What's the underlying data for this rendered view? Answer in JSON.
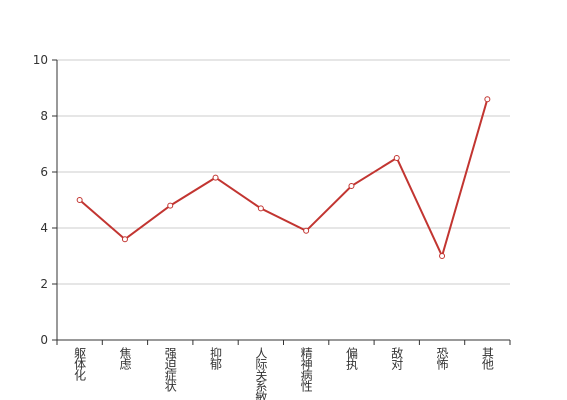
{
  "chart_data": {
    "type": "line",
    "categories": [
      "躯体化",
      "焦虑",
      "强迫症状",
      "抑郁",
      "人际关系敏感",
      "精神病性",
      "偏执",
      "敌对",
      "恐怖",
      "其他"
    ],
    "values": [
      5.0,
      3.6,
      4.8,
      5.8,
      4.7,
      3.9,
      5.5,
      6.5,
      3.0,
      8.6
    ],
    "color": "#c23531",
    "ylim": [
      0,
      10
    ],
    "yticks": [
      0,
      2,
      4,
      6,
      8,
      10
    ],
    "grid": true
  }
}
